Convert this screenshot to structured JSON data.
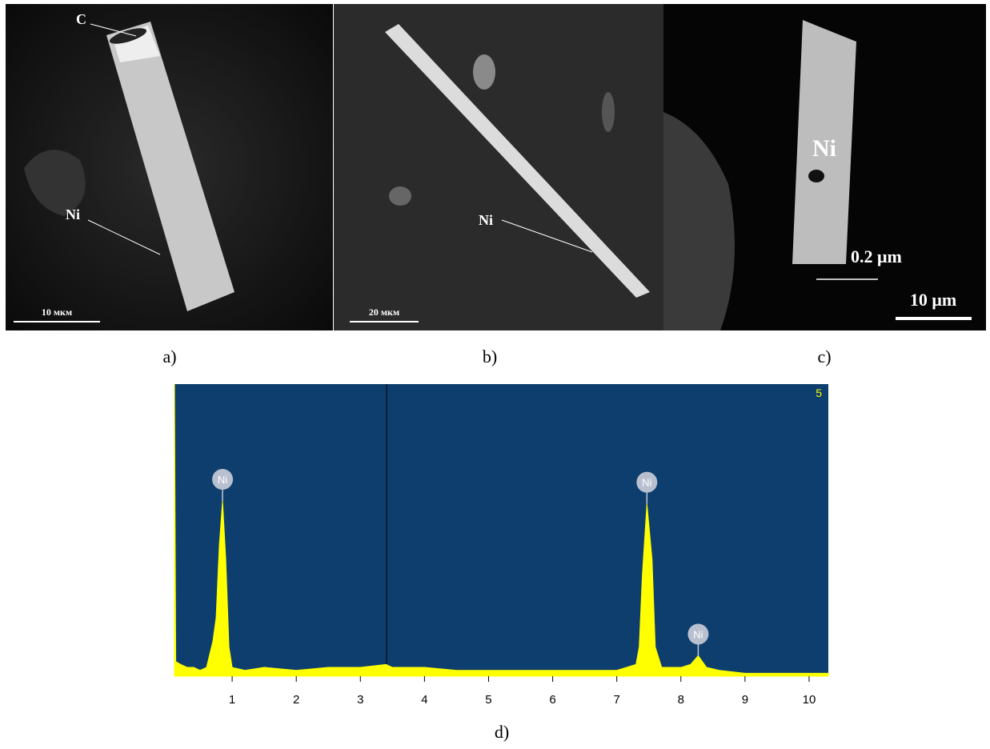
{
  "panels": [
    {
      "caption": "a)",
      "labels": [
        "C",
        "Ni"
      ],
      "scale_bar": "10 мкм"
    },
    {
      "caption": "b)",
      "labels": [
        "Ni"
      ],
      "scale_bar": "20 мкм"
    },
    {
      "caption": "c)",
      "labels": [
        "Ni",
        "0.2 μm"
      ],
      "scale_bar": "10 μm"
    }
  ],
  "chart_data": {
    "type": "area",
    "caption": "d)",
    "corner_label": "5",
    "color": "#ffff00",
    "background": "#0e3e6e",
    "x": [
      0.1,
      0.12,
      0.2,
      0.3,
      0.4,
      0.5,
      0.6,
      0.7,
      0.75,
      0.8,
      0.85,
      0.9,
      0.95,
      1.0,
      1.2,
      1.5,
      2.0,
      2.5,
      3.0,
      3.4,
      3.5,
      4.0,
      4.5,
      5.0,
      5.5,
      6.0,
      6.5,
      7.0,
      7.3,
      7.35,
      7.4,
      7.47,
      7.55,
      7.6,
      7.7,
      8.0,
      8.15,
      8.27,
      8.4,
      8.6,
      9.0,
      9.5,
      10.0,
      10.3
    ],
    "values": [
      100,
      5,
      4,
      3,
      3,
      2,
      3,
      12,
      20,
      45,
      60,
      40,
      10,
      3,
      2,
      3,
      2,
      3,
      3,
      4,
      3,
      3,
      2,
      2,
      2,
      2,
      2,
      2,
      4,
      10,
      35,
      59,
      40,
      10,
      3,
      3,
      4,
      7,
      3,
      2,
      1,
      1,
      1,
      1
    ],
    "annotations": [
      {
        "text": "Ni",
        "x": 0.85
      },
      {
        "text": "Ni",
        "x": 7.47
      },
      {
        "text": "Ni",
        "x": 8.27
      }
    ],
    "xlim": [
      0.1,
      10.3
    ],
    "ylim": [
      0,
      100
    ],
    "xticks": [
      1,
      2,
      3,
      4,
      5,
      6,
      7,
      8,
      9,
      10
    ]
  }
}
